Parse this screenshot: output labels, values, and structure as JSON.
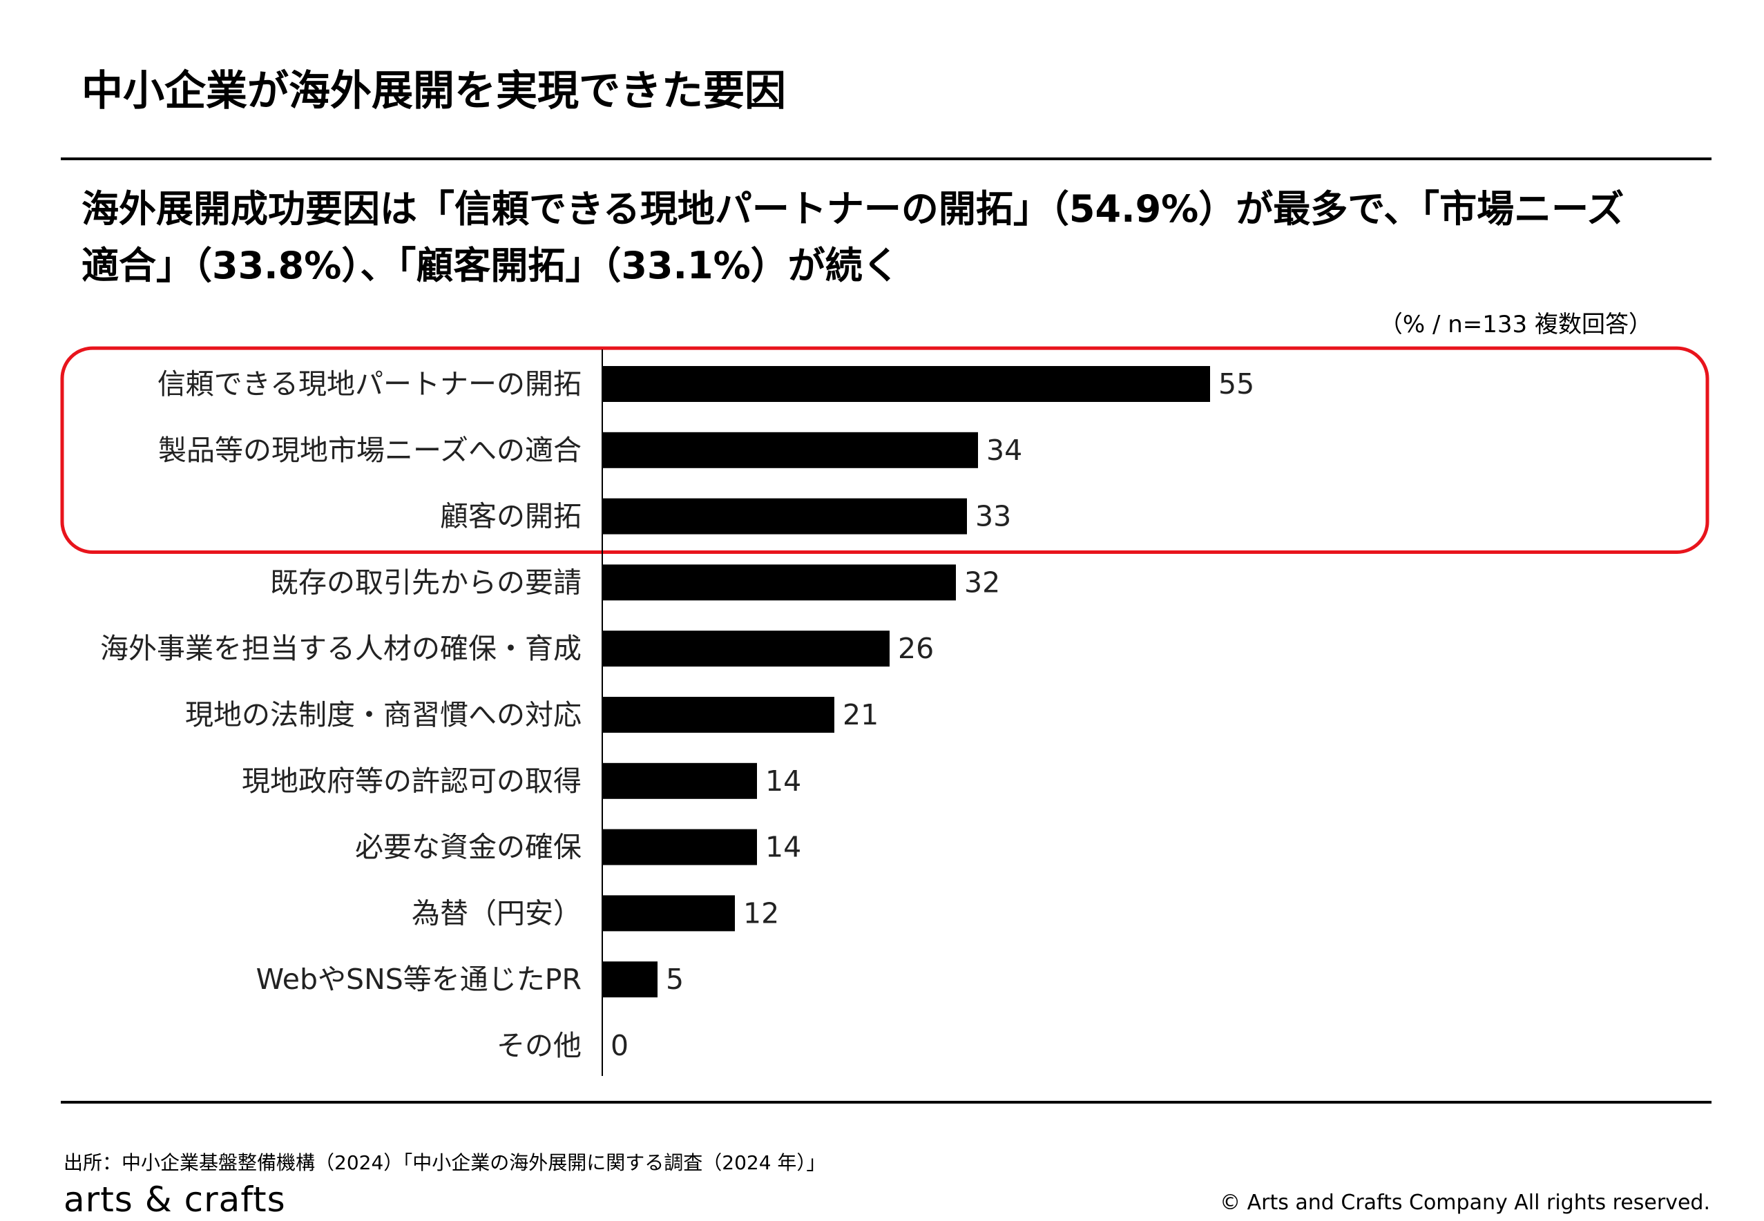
{
  "page": {
    "title": "中小企業が海外展開を実現できた要因",
    "headline_line1": "海外展開成功要因は「信頼できる現地パートナーの開拓」（54.9%）が最多で、「市場ニーズ",
    "headline_line2": "適合」（33.8%）、「顧客開拓」（33.1%）が続く",
    "unit_note": "（% / n=133 複数回答）",
    "source": "出所：中小企業基盤整備機構（2024）「中小企業の海外展開に関する調査（2024 年）」",
    "logo": "arts & crafts",
    "copyright": "© Arts and Crafts Company All rights reserved."
  },
  "colors": {
    "bar": "#000000",
    "highlight": "#e8141c"
  },
  "chart_data": {
    "type": "bar",
    "orientation": "horizontal",
    "categories": [
      "信頼できる現地パートナーの開拓",
      "製品等の現地市場ニーズへの適合",
      "顧客の開拓",
      "既存の取引先からの要請",
      "海外事業を担当する人材の確保・育成",
      "現地の法制度・商習慣への対応",
      "現地政府等の許認可の取得",
      "必要な資金の確保",
      "為替（円安）",
      "WebやSNS等を通じたPR",
      "その他"
    ],
    "values": [
      55,
      34,
      33,
      32,
      26,
      21,
      14,
      14,
      12,
      5,
      0
    ],
    "data_labels": [
      "55",
      "34",
      "33",
      "32",
      "26",
      "21",
      "14",
      "14",
      "12",
      "5",
      "0"
    ],
    "highlighted_categories": [
      0,
      1,
      2
    ],
    "xlim": [
      0,
      100
    ],
    "grid": false,
    "legend": "none"
  }
}
